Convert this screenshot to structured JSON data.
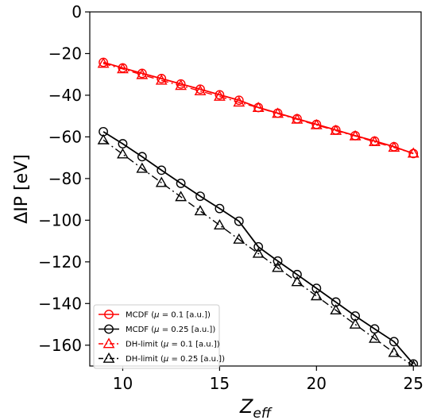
{
  "chart_data": {
    "type": "line",
    "title": "",
    "xlabel": "Z",
    "xlabel_sub": "eff",
    "ylabel": "ΔIP [eV]",
    "xlim": [
      8.3,
      25.4
    ],
    "ylim": [
      -170,
      0
    ],
    "xticks": [
      10,
      15,
      20,
      25
    ],
    "yticks": [
      0,
      -20,
      -40,
      -60,
      -80,
      -100,
      -120,
      -140,
      -160
    ],
    "ytick_labels": [
      "0",
      "−20",
      "−40",
      "−60",
      "−80",
      "−100",
      "−120",
      "−140",
      "−160"
    ],
    "x": [
      9,
      10,
      11,
      12,
      13,
      14,
      15,
      16,
      17,
      18,
      19,
      20,
      21,
      22,
      23,
      24,
      25
    ],
    "legend_position": "bottom-left",
    "grid": false,
    "series": [
      {
        "name": "MCDF (μ = 0.1 [a.u.])",
        "color": "#ff0000",
        "marker": "circle",
        "linestyle": "solid",
        "values": [
          -24.2,
          -26.9,
          -29.5,
          -32.0,
          -34.6,
          -37.1,
          -39.8,
          -42.4,
          -45.9,
          -48.6,
          -51.3,
          -54.0,
          -56.7,
          -59.4,
          -62.0,
          -64.7,
          -68.0
        ]
      },
      {
        "name": "MCDF (μ = 0.25 [a.u.])",
        "color": "#000000",
        "marker": "circle",
        "linestyle": "solid",
        "values": [
          -57.5,
          -63.3,
          -69.5,
          -76.0,
          -82.3,
          -88.5,
          -94.4,
          -100.5,
          -112.8,
          -119.6,
          -126.1,
          -132.7,
          -139.3,
          -146.0,
          -152.2,
          -158.3,
          -169.0
        ]
      },
      {
        "name": "DH-limit (μ = 0.1 [a.u.])",
        "color": "#ff0000",
        "marker": "triangle",
        "linestyle": "dashdot",
        "values": [
          -24.8,
          -27.4,
          -30.2,
          -32.9,
          -35.4,
          -38.0,
          -40.6,
          -43.4,
          -46.0,
          -48.8,
          -51.6,
          -54.3,
          -57.0,
          -59.6,
          -62.4,
          -65.1,
          -67.9
        ]
      },
      {
        "name": "DH-limit (μ = 0.25 [a.u.])",
        "color": "#000000",
        "marker": "triangle",
        "linestyle": "dashdot",
        "values": [
          -61.5,
          -68.3,
          -75.2,
          -82.0,
          -88.8,
          -95.6,
          -102.4,
          -109.2,
          -116.0,
          -122.8,
          -129.6,
          -136.4,
          -143.2,
          -150.0,
          -156.8,
          -163.6,
          -170.0
        ]
      }
    ],
    "legend": {
      "entries": [
        {
          "prefix": "MCDF (",
          "mu": "μ",
          "suffix": " = 0.1 [a.u.])"
        },
        {
          "prefix": "MCDF (",
          "mu": "μ",
          "suffix": " = 0.25 [a.u.])"
        },
        {
          "prefix": "DH-limit (",
          "mu": "μ",
          "suffix": " = 0.1 [a.u.])"
        },
        {
          "prefix": "DH-limit (",
          "mu": "μ",
          "suffix": " = 0.25 [a.u.])"
        }
      ]
    }
  }
}
